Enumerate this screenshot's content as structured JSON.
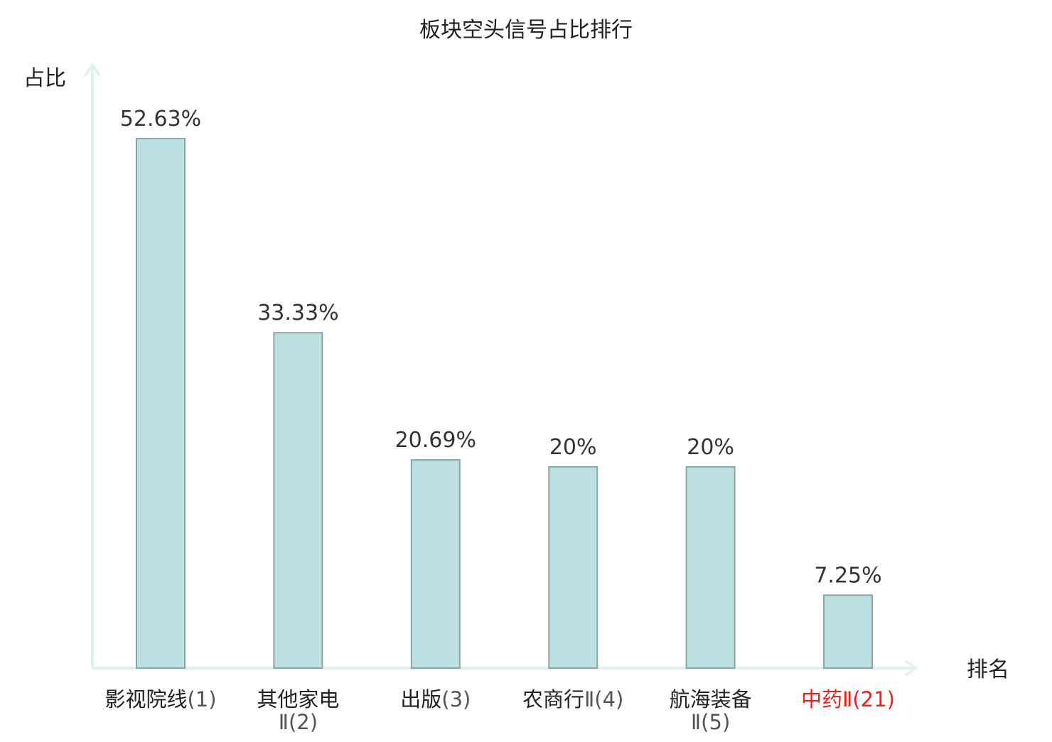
{
  "chart_data": {
    "type": "bar",
    "title": "板块空头信号占比排行",
    "ylabel": "占比",
    "xlabel": "排名",
    "ylim": [
      0,
      60
    ],
    "grid": false,
    "categories": [
      {
        "name": "影视院线",
        "rank": "(1)",
        "highlight": false
      },
      {
        "name": "其他家电",
        "rank": "Ⅱ(2)",
        "highlight": false
      },
      {
        "name": "出版",
        "rank": "(3)",
        "highlight": false
      },
      {
        "name": "农商行",
        "rank": "Ⅱ(4)",
        "highlight": false
      },
      {
        "name": "航海装备",
        "rank": "Ⅱ(5)",
        "highlight": false
      },
      {
        "name": "中药",
        "rank": "Ⅱ(21)",
        "highlight": true
      }
    ],
    "values": [
      52.63,
      33.33,
      20.69,
      20,
      20,
      7.25
    ],
    "value_labels": [
      "52.63%",
      "33.33%",
      "20.69%",
      "20%",
      "20%",
      "7.25%"
    ]
  },
  "colors": {
    "bar_fill": "#bde0e3",
    "bar_stroke": "#8aa6a8",
    "axis": "#e0f2ef",
    "text": "#333333",
    "label_text": "#222222",
    "rank_text": "#555555",
    "highlight": "#e8221b"
  }
}
